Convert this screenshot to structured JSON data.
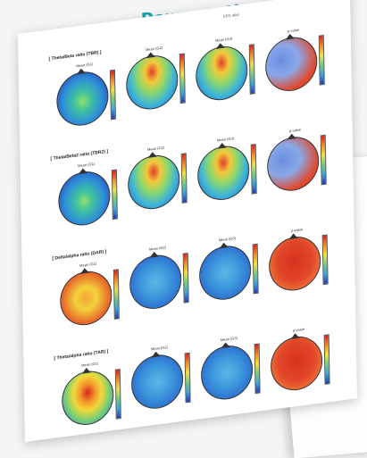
{
  "page": {
    "title": "Power ratio"
  },
  "sheet": {
    "header": "EEG atlas",
    "sections": [
      {
        "label": "[ Theta/Beta ratio (TBR) ]",
        "maps": [
          {
            "label": "Mean (G1)",
            "pattern": "theta-beta-g1"
          },
          {
            "label": "Mean (G2)",
            "pattern": "frontal-warm"
          },
          {
            "label": "Mean (G3)",
            "pattern": "frontal-warm"
          },
          {
            "label": "p-value",
            "pattern": "pval-mixed"
          }
        ]
      },
      {
        "label": "[ Theta/Beta2 ratio (TBR2) ]",
        "maps": [
          {
            "label": "Mean (G1)",
            "pattern": "theta-beta-g1"
          },
          {
            "label": "Mean (G2)",
            "pattern": "frontal-warm"
          },
          {
            "label": "Mean (G3)",
            "pattern": "frontal-warm"
          },
          {
            "label": "p-value",
            "pattern": "pval-mixed"
          }
        ]
      },
      {
        "label": "[ Delta/alpha ratio (DAR) ]",
        "maps": [
          {
            "label": "Mean (G1)",
            "pattern": "warm-all"
          },
          {
            "label": "Mean (G2)",
            "pattern": "cool-all"
          },
          {
            "label": "Mean (G3)",
            "pattern": "cool-all"
          },
          {
            "label": "p-value",
            "pattern": "pval-red"
          }
        ]
      },
      {
        "label": "[ Theta/alpha ratio (TAR) ]",
        "maps": [
          {
            "label": "Mean (G1)",
            "pattern": "center-warm"
          },
          {
            "label": "Mean (G2)",
            "pattern": "cool-all"
          },
          {
            "label": "Mean (G3)",
            "pattern": "cool-all"
          },
          {
            "label": "p-value",
            "pattern": "pval-red"
          }
        ]
      }
    ]
  }
}
